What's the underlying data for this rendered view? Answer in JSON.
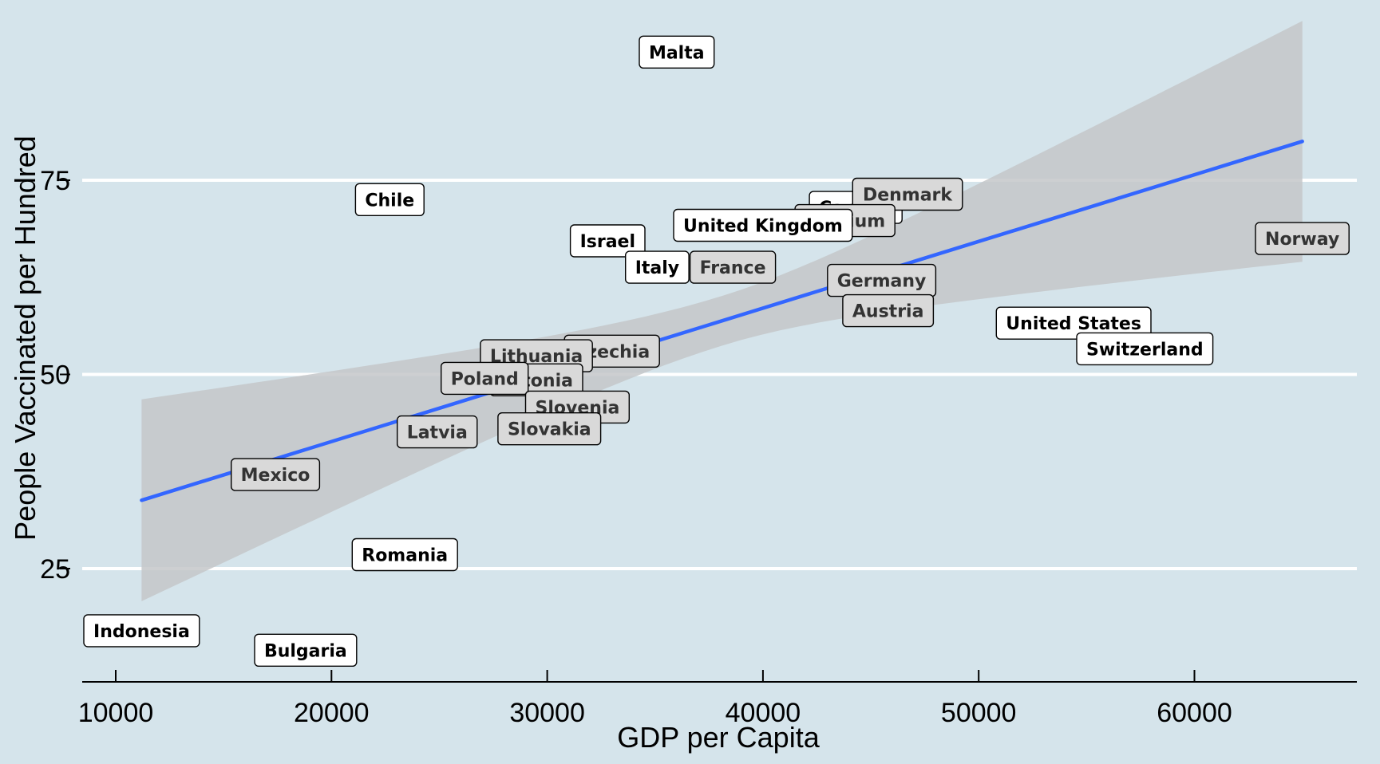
{
  "chart_data": {
    "type": "scatter",
    "title": "",
    "xlabel": "GDP per Capita",
    "ylabel": "People Vaccinated per Hundred",
    "xlim": [
      8500,
      67500
    ],
    "ylim": [
      9,
      94
    ],
    "x_ticks": [
      {
        "value": 10000,
        "label": "10000"
      },
      {
        "value": 20000,
        "label": "20000"
      },
      {
        "value": 30000,
        "label": "30000"
      },
      {
        "value": 40000,
        "label": "40000"
      },
      {
        "value": 50000,
        "label": "50000"
      },
      {
        "value": 60000,
        "label": "60000"
      }
    ],
    "y_ticks": [
      {
        "value": 25,
        "label": "25"
      },
      {
        "value": 50,
        "label": "50"
      },
      {
        "value": 75,
        "label": "75"
      }
    ],
    "grid": "horizontal",
    "colors": {
      "background": "#d5e4eb",
      "gridline": "#ffffff",
      "trend_line": "#3366ff",
      "confidence_band": "#c4c7c9",
      "label_box_white": "#ffffff",
      "label_box_grey": "#d9d9d9"
    },
    "trend": {
      "type": "linear",
      "x": [
        11200,
        65000
      ],
      "y": [
        33.8,
        80.0
      ],
      "band_lower": [
        20.8,
        64.5
      ],
      "band_upper": [
        46.8,
        95.5
      ]
    },
    "points": [
      {
        "label": "Malta",
        "x": 36000,
        "y": 91.5
      },
      {
        "label": "Chile",
        "x": 22700,
        "y": 72.5
      },
      {
        "label": "Canada",
        "x": 44300,
        "y": 71.5
      },
      {
        "label": "Denmark",
        "x": 46700,
        "y": 73.2
      },
      {
        "label": "Belgium",
        "x": 43800,
        "y": 69.8
      },
      {
        "label": "United Kingdom",
        "x": 40000,
        "y": 69.2
      },
      {
        "label": "Israel",
        "x": 32800,
        "y": 67.2
      },
      {
        "label": "Norway",
        "x": 65000,
        "y": 67.5
      },
      {
        "label": "Italy",
        "x": 35100,
        "y": 63.8
      },
      {
        "label": "France",
        "x": 38600,
        "y": 63.8
      },
      {
        "label": "Germany",
        "x": 45500,
        "y": 62.1
      },
      {
        "label": "Austria",
        "x": 45800,
        "y": 58.2
      },
      {
        "label": "United States",
        "x": 54400,
        "y": 56.6
      },
      {
        "label": "Switzerland",
        "x": 57700,
        "y": 53.3
      },
      {
        "label": "Czechia",
        "x": 33000,
        "y": 53.0
      },
      {
        "label": "Lithuania",
        "x": 29500,
        "y": 52.4
      },
      {
        "label": "Estonia",
        "x": 29500,
        "y": 49.3
      },
      {
        "label": "Poland",
        "x": 27100,
        "y": 49.5
      },
      {
        "label": "Slovenia",
        "x": 31400,
        "y": 45.8
      },
      {
        "label": "Slovakia",
        "x": 30100,
        "y": 43.0
      },
      {
        "label": "Latvia",
        "x": 24900,
        "y": 42.6
      },
      {
        "label": "Mexico",
        "x": 17400,
        "y": 37.1
      },
      {
        "label": "Romania",
        "x": 23400,
        "y": 26.8
      },
      {
        "label": "Indonesia",
        "x": 11200,
        "y": 17.0
      },
      {
        "label": "Bulgaria",
        "x": 18800,
        "y": 14.5
      }
    ],
    "label_fill": {
      "Malta": "white",
      "Chile": "white",
      "Canada": "white",
      "Denmark": "grey",
      "Belgium": "grey",
      "United Kingdom": "white",
      "Israel": "white",
      "Norway": "grey",
      "Italy": "white",
      "France": "grey",
      "Germany": "grey",
      "Austria": "grey",
      "United States": "white",
      "Switzerland": "white",
      "Czechia": "grey",
      "Lithuania": "grey",
      "Estonia": "grey",
      "Poland": "grey",
      "Slovenia": "grey",
      "Slovakia": "grey",
      "Latvia": "grey",
      "Mexico": "grey",
      "Romania": "white",
      "Indonesia": "white",
      "Bulgaria": "white"
    }
  }
}
